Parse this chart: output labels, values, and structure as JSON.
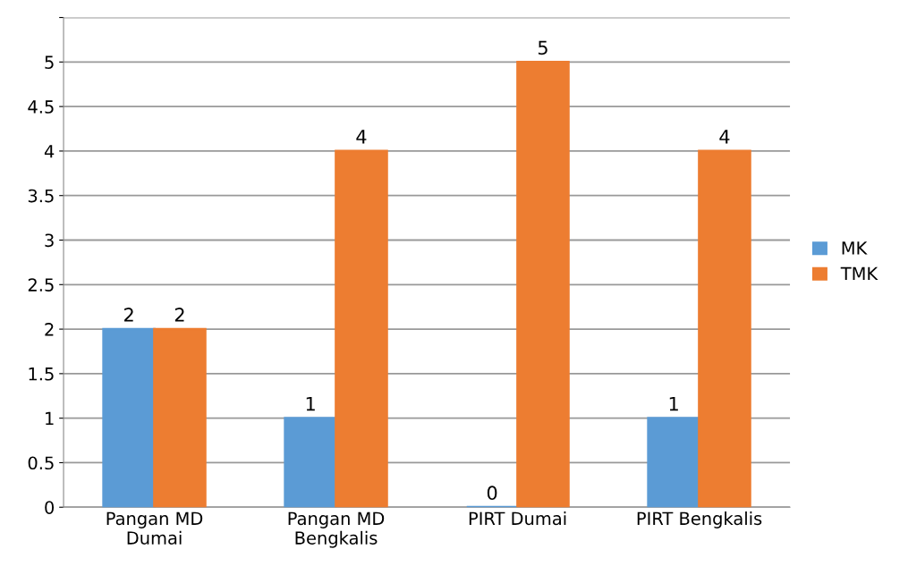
{
  "chart_data": {
    "type": "bar",
    "categories": [
      "Pangan MD\nDumai",
      "Pangan MD\nBengkalis",
      "PIRT Dumai",
      "PIRT Bengkalis"
    ],
    "series": [
      {
        "name": "MK",
        "color": "#5b9bd5",
        "values": [
          2,
          1,
          0,
          1
        ]
      },
      {
        "name": "TMK",
        "color": "#ed7d31",
        "values": [
          2,
          4,
          5,
          4
        ]
      }
    ],
    "ylim": [
      0,
      5.5
    ],
    "yticks": [
      0,
      0.5,
      1,
      1.5,
      2,
      2.5,
      3,
      3.5,
      4,
      4.5,
      5,
      {
        "value": 5.5,
        "label": null
      }
    ],
    "grid": "y",
    "legend": "right",
    "data_labels": true
  }
}
